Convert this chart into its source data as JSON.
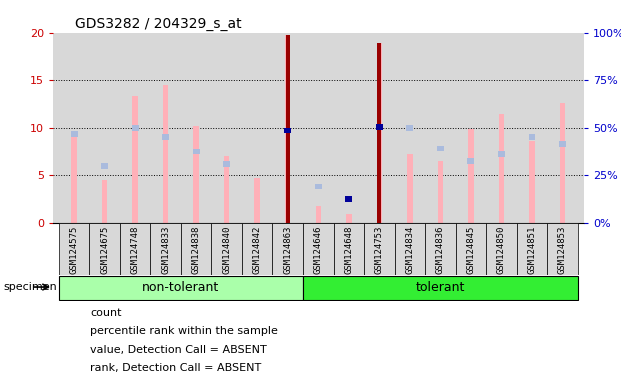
{
  "title": "GDS3282 / 204329_s_at",
  "samples": [
    "GSM124575",
    "GSM124675",
    "GSM124748",
    "GSM124833",
    "GSM124838",
    "GSM124840",
    "GSM124842",
    "GSM124863",
    "GSM124646",
    "GSM124648",
    "GSM124753",
    "GSM124834",
    "GSM124836",
    "GSM124845",
    "GSM124850",
    "GSM124851",
    "GSM124853"
  ],
  "group_split": 8,
  "non_tolerant_count": 8,
  "left_ylim": [
    0,
    20
  ],
  "right_ylim": [
    0,
    100
  ],
  "left_ticks": [
    0,
    5,
    10,
    15,
    20
  ],
  "right_ticks": [
    0,
    25,
    50,
    75,
    100
  ],
  "right_tick_labels": [
    "0%",
    "25%",
    "50%",
    "75%",
    "100%"
  ],
  "value_absent": [
    9.5,
    4.5,
    13.3,
    14.5,
    10.2,
    7.0,
    4.7,
    19.7,
    1.8,
    0.9,
    18.9,
    7.2,
    6.5,
    9.9,
    11.4,
    8.6,
    12.6
  ],
  "rank_absent_y": [
    9.3,
    6.0,
    10.0,
    9.0,
    7.5,
    6.2,
    null,
    9.7,
    3.8,
    null,
    null,
    10.0,
    7.8,
    6.5,
    7.2,
    9.0,
    8.3
  ],
  "count": [
    null,
    null,
    null,
    null,
    null,
    null,
    null,
    19.7,
    null,
    null,
    18.9,
    null,
    null,
    null,
    null,
    null,
    null
  ],
  "percentile_rank_y": [
    null,
    null,
    null,
    null,
    null,
    null,
    null,
    9.7,
    null,
    2.5,
    10.1,
    null,
    null,
    null,
    null,
    null,
    null
  ],
  "color_value_absent": "#FFB0B8",
  "color_rank_absent": "#AABBDD",
  "color_count": "#990000",
  "color_percentile": "#000099",
  "color_left_axis": "#CC0000",
  "color_right_axis": "#0000CC",
  "bg_color": "#D8D8D8",
  "group1_color": "#AAFFAA",
  "group2_color": "#33EE33",
  "legend_items": [
    {
      "label": "count",
      "color": "#990000"
    },
    {
      "label": "percentile rank within the sample",
      "color": "#000099"
    },
    {
      "label": "value, Detection Call = ABSENT",
      "color": "#FFB0B8"
    },
    {
      "label": "rank, Detection Call = ABSENT",
      "color": "#AABBDD"
    }
  ]
}
